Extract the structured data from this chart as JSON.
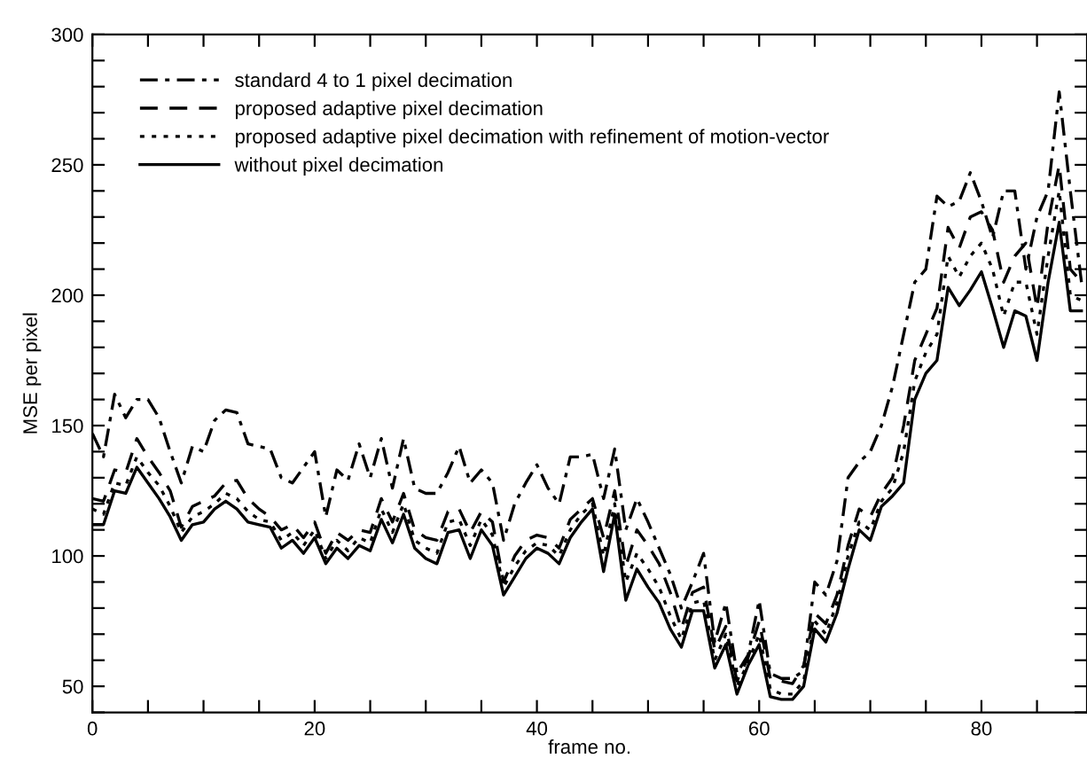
{
  "chart_data": {
    "type": "line",
    "xlabel": "frame no.",
    "ylabel": "MSE per pixel",
    "xlim": [
      0,
      89.5
    ],
    "ylim": [
      40,
      300
    ],
    "xticks": [
      0,
      {
        "value": 5,
        "label": null
      },
      {
        "value": 10,
        "label": null
      },
      {
        "value": 15,
        "label": null
      },
      20,
      {
        "value": 25,
        "label": null
      },
      {
        "value": 30,
        "label": null
      },
      {
        "value": 35,
        "label": null
      },
      40,
      {
        "value": 45,
        "label": null
      },
      {
        "value": 50,
        "label": null
      },
      {
        "value": 55,
        "label": null
      },
      60,
      {
        "value": 65,
        "label": null
      },
      {
        "value": 70,
        "label": null
      },
      {
        "value": 75,
        "label": null
      },
      80,
      {
        "value": 85,
        "label": null
      }
    ],
    "yticks": [
      {
        "value": 40,
        "label": null
      },
      50,
      {
        "value": 60,
        "label": null
      },
      {
        "value": 70,
        "label": null
      },
      {
        "value": 80,
        "label": null
      },
      {
        "value": 90,
        "label": null
      },
      100,
      {
        "value": 110,
        "label": null
      },
      {
        "value": 120,
        "label": null
      },
      {
        "value": 130,
        "label": null
      },
      {
        "value": 140,
        "label": null
      },
      150,
      {
        "value": 160,
        "label": null
      },
      {
        "value": 170,
        "label": null
      },
      {
        "value": 180,
        "label": null
      },
      {
        "value": 190,
        "label": null
      },
      200,
      {
        "value": 210,
        "label": null
      },
      {
        "value": 220,
        "label": null
      },
      {
        "value": 230,
        "label": null
      },
      {
        "value": 240,
        "label": null
      },
      250,
      {
        "value": 260,
        "label": null
      },
      {
        "value": 270,
        "label": null
      },
      {
        "value": 280,
        "label": null
      },
      {
        "value": 290,
        "label": null
      },
      300
    ],
    "grid": false,
    "legend": "top left",
    "marker": "none",
    "x": [
      0,
      1,
      2,
      3,
      4,
      5,
      6,
      7,
      8,
      9,
      10,
      11,
      12,
      13,
      14,
      15,
      16,
      17,
      18,
      19,
      20,
      21,
      22,
      23,
      24,
      25,
      26,
      27,
      28,
      29,
      30,
      31,
      32,
      33,
      34,
      35,
      36,
      37,
      38,
      39,
      40,
      41,
      42,
      43,
      44,
      45,
      46,
      47,
      48,
      49,
      50,
      51,
      52,
      53,
      54,
      55,
      56,
      57,
      58,
      59,
      60,
      61,
      62,
      63,
      64,
      65,
      66,
      67,
      68,
      69,
      70,
      71,
      72,
      73,
      74,
      75,
      76,
      77,
      78,
      79,
      80,
      81,
      82,
      83,
      84,
      85,
      86,
      87,
      88,
      89
    ],
    "series": [
      {
        "name": "standard 4 to 1 pixel decimation",
        "color": "#000000",
        "line_style": "dashdot",
        "values": [
          147,
          138,
          162,
          153,
          160,
          160,
          153,
          140,
          128,
          142,
          140,
          152,
          156,
          155,
          143,
          142,
          141,
          130,
          128,
          134,
          140,
          115,
          133,
          129,
          143,
          130,
          145,
          126,
          145,
          126,
          124,
          124,
          132,
          142,
          128,
          133,
          128,
          106,
          120,
          128,
          135,
          126,
          120,
          138,
          138,
          139,
          122,
          141,
          110,
          122,
          113,
          103,
          93,
          80,
          90,
          101,
          67,
          82,
          55,
          62,
          83,
          55,
          53,
          53,
          56,
          90,
          85,
          98,
          130,
          136,
          140,
          150,
          165,
          185,
          205,
          210,
          238,
          234,
          236,
          247,
          236,
          222,
          240,
          240,
          210,
          230,
          240,
          278,
          240,
          205
        ]
      },
      {
        "name": "proposed adaptive pixel decimation",
        "color": "#000000",
        "line_style": "dashed",
        "values": [
          122,
          121,
          133,
          132,
          145,
          138,
          132,
          125,
          111,
          119,
          121,
          123,
          128,
          129,
          122,
          118,
          115,
          110,
          112,
          107,
          113,
          101,
          109,
          106,
          110,
          109,
          122,
          113,
          124,
          110,
          107,
          106,
          117,
          118,
          109,
          117,
          113,
          90,
          100,
          106,
          108,
          107,
          103,
          114,
          118,
          122,
          107,
          125,
          96,
          110,
          104,
          97,
          86,
          72,
          86,
          88,
          64,
          73,
          52,
          61,
          75,
          53,
          52,
          51,
          58,
          78,
          74,
          85,
          104,
          118,
          115,
          124,
          130,
          150,
          175,
          185,
          195,
          226,
          218,
          230,
          232,
          225,
          205,
          215,
          220,
          195,
          228,
          250,
          210,
          205
        ]
      },
      {
        "name": "proposed adaptive pixel decimation with refinement of motion-vector",
        "color": "#000000",
        "line_style": "dotted",
        "values": [
          118,
          116,
          128,
          127,
          138,
          132,
          127,
          119,
          109,
          115,
          117,
          120,
          124,
          122,
          117,
          114,
          113,
          106,
          109,
          104,
          110,
          99,
          106,
          102,
          107,
          105,
          118,
          109,
          120,
          106,
          103,
          101,
          113,
          114,
          104,
          114,
          108,
          88,
          96,
          102,
          105,
          104,
          100,
          110,
          116,
          120,
          100,
          120,
          90,
          101,
          95,
          88,
          77,
          68,
          82,
          83,
          60,
          70,
          50,
          59,
          70,
          49,
          47,
          47,
          52,
          75,
          70,
          82,
          100,
          113,
          110,
          121,
          126,
          140,
          167,
          178,
          185,
          215,
          207,
          215,
          220,
          210,
          192,
          205,
          205,
          185,
          215,
          240,
          200,
          198
        ]
      },
      {
        "name": "without pixel decimation",
        "color": "#000000",
        "line_style": "solid",
        "values": [
          112,
          112,
          125,
          124,
          134,
          128,
          122,
          115,
          106,
          112,
          113,
          118,
          121,
          118,
          113,
          112,
          111,
          103,
          106,
          101,
          107,
          97,
          103,
          99,
          104,
          102,
          114,
          105,
          116,
          103,
          99,
          97,
          109,
          110,
          99,
          110,
          104,
          85,
          92,
          99,
          103,
          101,
          97,
          107,
          113,
          118,
          94,
          116,
          83,
          95,
          88,
          82,
          72,
          65,
          79,
          79,
          57,
          66,
          47,
          58,
          66,
          46,
          45,
          45,
          50,
          72,
          67,
          78,
          95,
          110,
          106,
          119,
          123,
          128,
          160,
          170,
          175,
          203,
          196,
          202,
          209,
          195,
          180,
          194,
          192,
          175,
          205,
          228,
          194,
          194
        ]
      }
    ]
  }
}
